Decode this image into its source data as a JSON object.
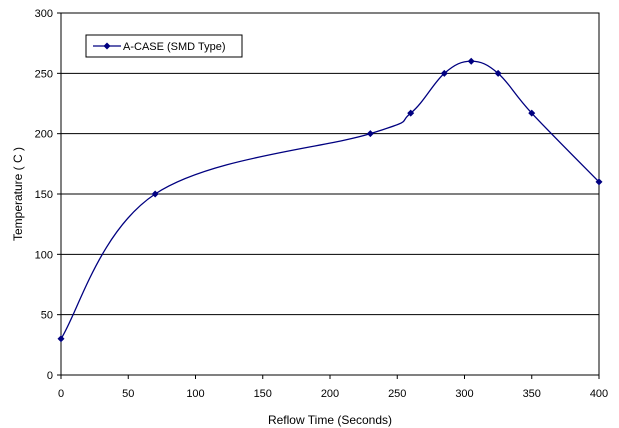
{
  "chart_data": {
    "type": "line",
    "title": "",
    "xlabel": "Reflow Time (Seconds)",
    "ylabel": "Temperature ( C )",
    "xlim": [
      0,
      400
    ],
    "ylim": [
      0,
      300
    ],
    "x_ticks": [
      0,
      50,
      100,
      150,
      200,
      250,
      300,
      350,
      400
    ],
    "y_ticks": [
      0,
      50,
      100,
      150,
      200,
      250,
      300
    ],
    "grid": "horizontal",
    "legend_position": "top-left",
    "series": [
      {
        "name": "A-CASE (SMD Type)",
        "color": "#000080",
        "marker": "diamond",
        "smooth": true,
        "x": [
          0,
          70,
          230,
          260,
          285,
          305,
          325,
          350,
          400
        ],
        "y": [
          30,
          150,
          200,
          217,
          250,
          260,
          250,
          217,
          160
        ]
      }
    ]
  }
}
